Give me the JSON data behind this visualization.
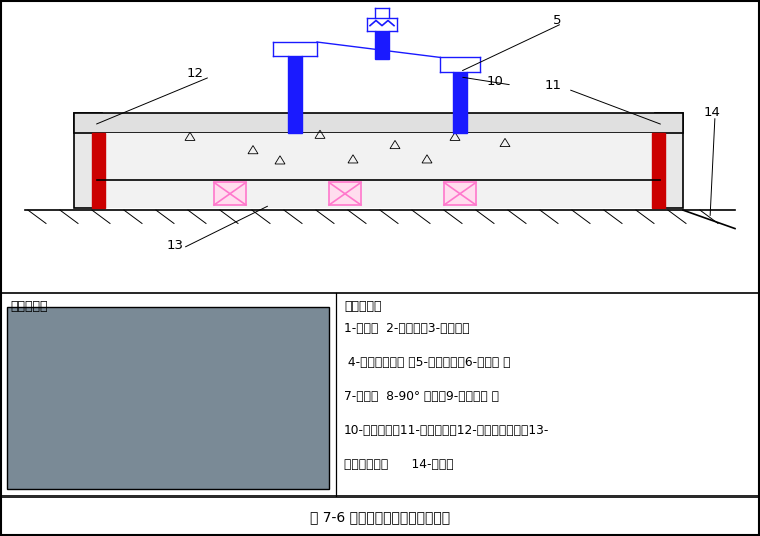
{
  "title": "图 7-6 立式水泵与管路连接示意图",
  "bg_color": "#ffffff",
  "black": "#000000",
  "red": "#cc0000",
  "blue": "#1a1aff",
  "pink": "#ff77cc",
  "legend_title": "符号说明：",
  "legend_lines": [
    "1-闸阀；  2-除污器；3-软接头；",
    " 4-压力表连旋塞 ；5-立式水泵；6-止回阀 ；",
    "7-支架；  8-90° 弯头；9-弹性吊架 ；",
    "10-浮动底座；11-隔离夹板；12-外部等级夹板；13-",
    "隔振橡胶垫；      14-地面；"
  ],
  "shishi_title": "实施案例："
}
